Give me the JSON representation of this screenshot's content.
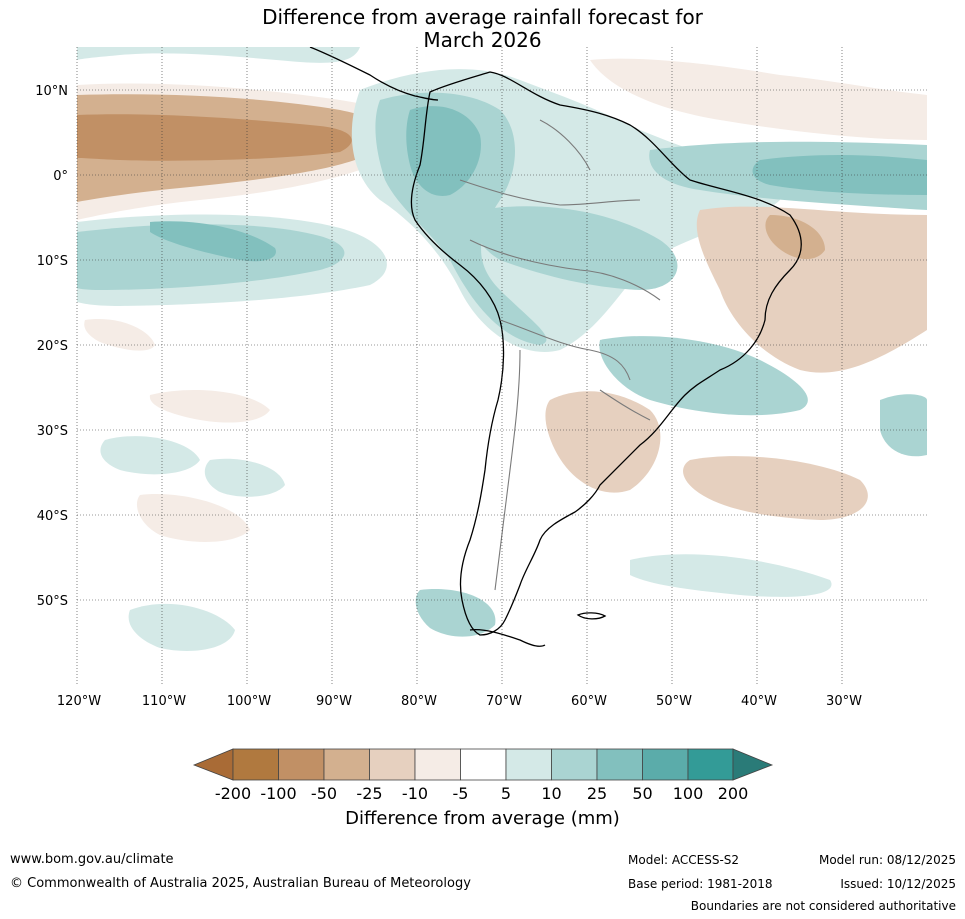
{
  "title": {
    "line1": "Difference from average rainfall forecast for",
    "line2": "March 2026"
  },
  "axes": {
    "lat_labels": [
      "10°N",
      "0°",
      "10°S",
      "20°S",
      "30°S",
      "40°S",
      "50°S"
    ],
    "lon_labels": [
      "120°W",
      "110°W",
      "100°W",
      "90°W",
      "80°W",
      "70°W",
      "60°W",
      "50°W",
      "40°W",
      "30°W"
    ]
  },
  "colorbar": {
    "ticks": [
      "-200",
      "-100",
      "-50",
      "-25",
      "-10",
      "-5",
      "5",
      "10",
      "25",
      "50",
      "100",
      "200"
    ],
    "colors": [
      "#a96b36",
      "#b0793f",
      "#c19065",
      "#d3b08f",
      "#e6d0bf",
      "#f5ece6",
      "#ffffff",
      "#d4e9e7",
      "#aad4d2",
      "#82c0be",
      "#5bacaa",
      "#339b97",
      "#2a7b78"
    ],
    "title": "Difference from average (mm)"
  },
  "footer": {
    "website": "www.bom.gov.au/climate",
    "copyright": "© Commonwealth of Australia 2025, Australian Bureau of Meteorology",
    "model": "Model: ACCESS-S2",
    "base_period": "Base period: 1981-2018",
    "model_run": "Model run: 08/12/2025",
    "issued": "Issued: 10/12/2025",
    "disclaimer": "Boundaries are not considered authoritative"
  }
}
